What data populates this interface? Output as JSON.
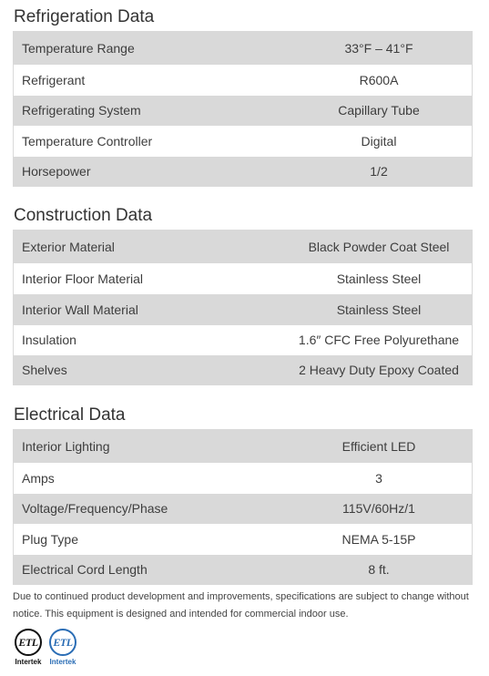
{
  "sections": [
    {
      "title": "Refrigeration Data",
      "rows": [
        {
          "label": "Temperature Range",
          "value": "33°F – 41°F"
        },
        {
          "label": "Refrigerant",
          "value": "R600A"
        },
        {
          "label": "Refrigerating System",
          "value": "Capillary Tube"
        },
        {
          "label": "Temperature Controller",
          "value": "Digital"
        },
        {
          "label": "Horsepower",
          "value": "1/2"
        }
      ]
    },
    {
      "title": "Construction Data",
      "rows": [
        {
          "label": "Exterior Material",
          "value": "Black Powder Coat Steel"
        },
        {
          "label": "Interior Floor Material",
          "value": "Stainless Steel"
        },
        {
          "label": "Interior Wall Material",
          "value": "Stainless Steel"
        },
        {
          "label": "Insulation",
          "value": "1.6″ CFC Free Polyurethane"
        },
        {
          "label": "Shelves",
          "value": "2 Heavy Duty Epoxy Coated"
        }
      ]
    },
    {
      "title": "Electrical Data",
      "rows": [
        {
          "label": "Interior Lighting",
          "value": "Efficient LED"
        },
        {
          "label": "Amps",
          "value": "3"
        },
        {
          "label": "Voltage/Frequency/Phase",
          "value": "115V/60Hz/1"
        },
        {
          "label": "Plug Type",
          "value": "NEMA 5-15P"
        },
        {
          "label": "Electrical Cord Length",
          "value": "8 ft."
        }
      ]
    }
  ],
  "note": "Due to continued product development and improvements, specifications are subject to change without notice. This equipment is designed and intended for commercial indoor use.",
  "certifications": [
    {
      "mark": "ETL",
      "name": "Intertek",
      "color": "#111111",
      "icon": "etl-listed-icon"
    },
    {
      "mark": "ETL",
      "name": "Intertek",
      "color": "#2a6db5",
      "icon": "etl-sanitation-icon"
    }
  ]
}
